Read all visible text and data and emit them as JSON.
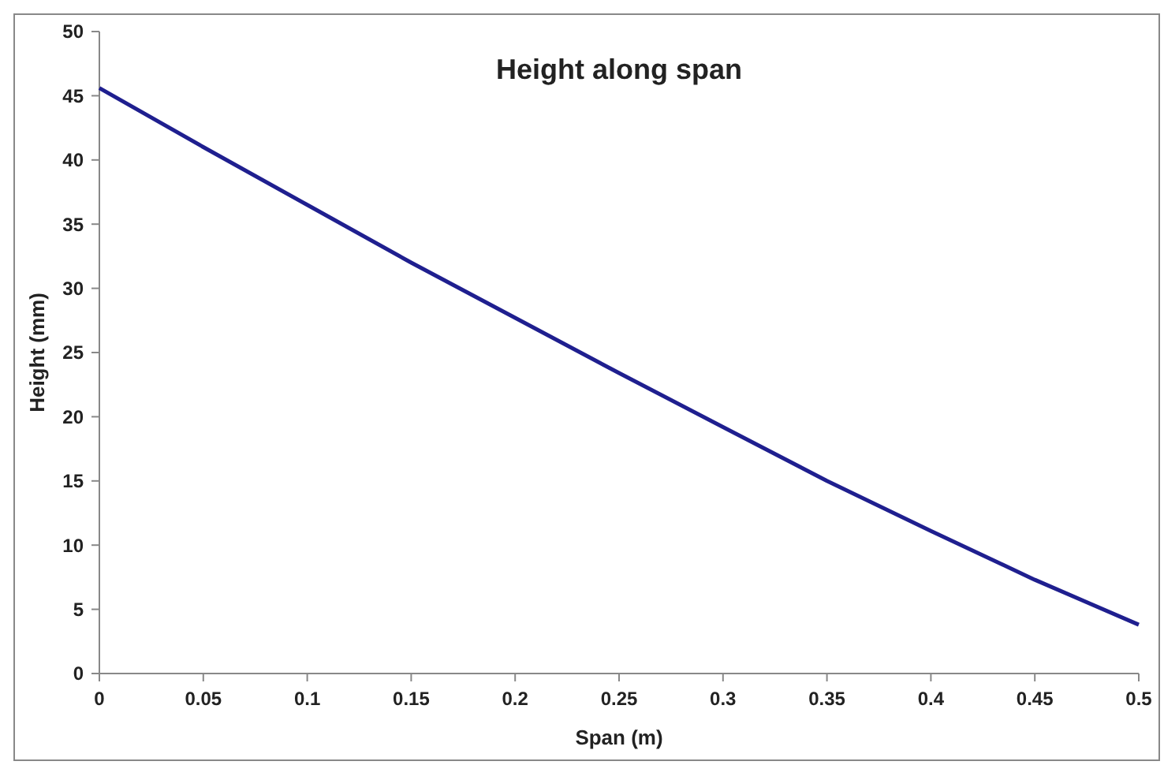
{
  "chart_data": {
    "type": "line",
    "title": "Height along span",
    "xlabel": "Span (m)",
    "ylabel": "Height (mm)",
    "x": [
      0,
      0.05,
      0.1,
      0.15,
      0.2,
      0.25,
      0.3,
      0.35,
      0.4,
      0.45,
      0.5
    ],
    "series": [
      {
        "color": "#1f1f8f",
        "values": [
          45.6,
          41.0,
          36.5,
          32.0,
          27.7,
          23.4,
          19.2,
          15.0,
          11.1,
          7.3,
          3.8
        ]
      }
    ],
    "xlim": [
      0,
      0.5
    ],
    "xticks": [
      0,
      0.05,
      0.1,
      0.15,
      0.2,
      0.25,
      0.3,
      0.35,
      0.4,
      0.45,
      0.5
    ],
    "ylim": [
      0,
      50
    ],
    "yticks": [
      0,
      5,
      10,
      15,
      20,
      25,
      30,
      35,
      40,
      45,
      50
    ],
    "grid": false,
    "marker": "none",
    "line_style": "solid"
  }
}
